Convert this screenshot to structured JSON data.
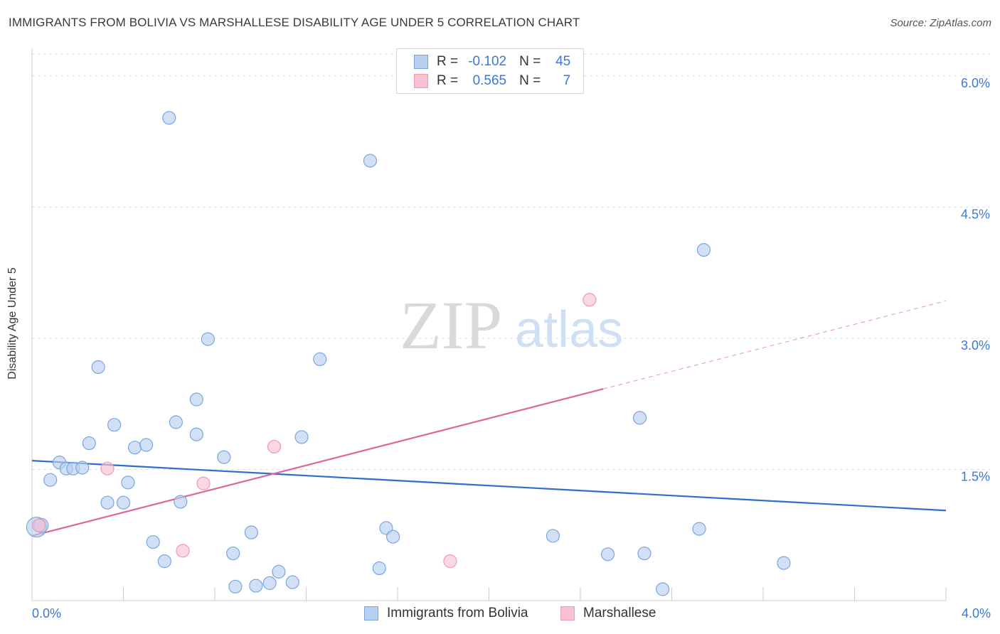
{
  "title": "IMMIGRANTS FROM BOLIVIA VS MARSHALLESE DISABILITY AGE UNDER 5 CORRELATION CHART",
  "source": "Source: ZipAtlas.com",
  "watermark": {
    "zip": "ZIP",
    "atlas": "atlas"
  },
  "legend": {
    "rows": [
      {
        "r_label": "R =",
        "r_value": "-0.102",
        "n_label": "N =",
        "n_value": "45"
      },
      {
        "r_label": "R =",
        "r_value": "0.565",
        "n_label": "N =",
        "n_value": "7"
      }
    ]
  },
  "bottom_legend": {
    "series1": "Immigrants from Bolivia",
    "series2": "Marshallese"
  },
  "colors": {
    "blue_fill": "#b8d0f0",
    "blue_stroke": "#7aa6e0",
    "blue_line": "#2f6fcc",
    "pink_fill": "#f7c3d2",
    "pink_stroke": "#ee9ab5",
    "pink_line": "#e0649a",
    "tick_text": "#3b78d8",
    "grid": "#dddddd"
  },
  "chart_data": {
    "type": "scatter",
    "title": "IMMIGRANTS FROM BOLIVIA VS MARSHALLESE DISABILITY AGE UNDER 5 CORRELATION CHART",
    "xlabel": "",
    "ylabel": "Disability Age Under 5",
    "xlim": [
      0,
      4.0
    ],
    "ylim": [
      0,
      6.25
    ],
    "x_tick_labels": [
      "0.0%",
      "4.0%"
    ],
    "y_ticks": [
      1.5,
      3.0,
      4.5,
      6.0
    ],
    "y_tick_labels": [
      "1.5%",
      "3.0%",
      "4.5%",
      "6.0%"
    ],
    "grid": true,
    "series": [
      {
        "name": "Immigrants from Bolivia",
        "points": [
          [
            0.02,
            0.84,
            14
          ],
          [
            0.04,
            0.86,
            10
          ],
          [
            0.08,
            1.38,
            9
          ],
          [
            0.12,
            1.58,
            9
          ],
          [
            0.15,
            1.51,
            9
          ],
          [
            0.18,
            1.51,
            9
          ],
          [
            0.22,
            1.52,
            9
          ],
          [
            0.25,
            1.8,
            9
          ],
          [
            0.29,
            2.67,
            9
          ],
          [
            0.33,
            1.12,
            9
          ],
          [
            0.36,
            2.01,
            9
          ],
          [
            0.4,
            1.12,
            9
          ],
          [
            0.42,
            1.35,
            9
          ],
          [
            0.45,
            1.75,
            9
          ],
          [
            0.5,
            1.78,
            9
          ],
          [
            0.53,
            0.67,
            9
          ],
          [
            0.58,
            0.45,
            9
          ],
          [
            0.6,
            5.52,
            9
          ],
          [
            0.63,
            2.04,
            9
          ],
          [
            0.65,
            1.13,
            9
          ],
          [
            0.72,
            2.3,
            9
          ],
          [
            0.72,
            1.9,
            9
          ],
          [
            0.77,
            2.99,
            9
          ],
          [
            0.84,
            1.64,
            9
          ],
          [
            0.88,
            0.54,
            9
          ],
          [
            0.89,
            0.16,
            9
          ],
          [
            0.96,
            0.78,
            9
          ],
          [
            0.98,
            0.17,
            9
          ],
          [
            1.04,
            0.2,
            9
          ],
          [
            1.08,
            0.33,
            9
          ],
          [
            1.14,
            0.21,
            9
          ],
          [
            1.18,
            1.87,
            9
          ],
          [
            1.26,
            2.76,
            9
          ],
          [
            1.48,
            5.03,
            9
          ],
          [
            1.52,
            0.37,
            9
          ],
          [
            1.55,
            0.83,
            9
          ],
          [
            1.58,
            0.73,
            9
          ],
          [
            2.28,
            0.74,
            9
          ],
          [
            2.52,
            0.53,
            9
          ],
          [
            2.66,
            2.09,
            9
          ],
          [
            2.68,
            0.54,
            9
          ],
          [
            2.76,
            0.13,
            9
          ],
          [
            2.92,
            0.82,
            9
          ],
          [
            2.94,
            4.01,
            9
          ],
          [
            3.29,
            0.43,
            9
          ]
        ]
      },
      {
        "name": "Marshallese",
        "points": [
          [
            0.03,
            0.86,
            9
          ],
          [
            0.33,
            1.51,
            9
          ],
          [
            0.66,
            0.57,
            9
          ],
          [
            0.75,
            1.34,
            9
          ],
          [
            1.06,
            1.76,
            9
          ],
          [
            1.83,
            0.45,
            9
          ],
          [
            2.44,
            3.44,
            9
          ]
        ]
      }
    ],
    "trend_lines": [
      {
        "series": "Immigrants from Bolivia",
        "x": [
          0.0,
          4.0
        ],
        "y": [
          1.6,
          1.03
        ]
      },
      {
        "series": "Marshallese",
        "x_solid": [
          0.0,
          2.5
        ],
        "x_dashed": [
          2.5,
          4.0
        ],
        "slope": 0.672,
        "intercept": 0.74
      }
    ]
  }
}
